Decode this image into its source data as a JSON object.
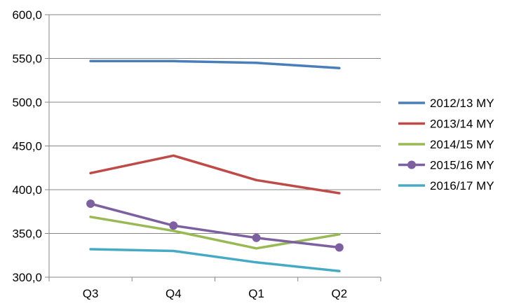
{
  "chart_data": {
    "type": "line",
    "title": "",
    "xlabel": "",
    "ylabel": "",
    "categories": [
      "Q3",
      "Q4",
      "Q1",
      "Q2"
    ],
    "ylim": [
      300,
      600
    ],
    "yticks": [
      300,
      350,
      400,
      450,
      500,
      550,
      600
    ],
    "ytick_labels": [
      "300,0",
      "350,0",
      "400,0",
      "450,0",
      "500,0",
      "550,0",
      "600,0"
    ],
    "grid": "horizontal",
    "legend_position": "right",
    "series": [
      {
        "name": "2012/13 MY",
        "color": "#4a7ebb",
        "marker": "none",
        "values": [
          547,
          547,
          545,
          539
        ]
      },
      {
        "name": "2013/14 MY",
        "color": "#be4b48",
        "marker": "none",
        "values": [
          419,
          439,
          411,
          396
        ]
      },
      {
        "name": "2014/15 MY",
        "color": "#98b954",
        "marker": "none",
        "values": [
          369,
          353,
          333,
          349
        ]
      },
      {
        "name": "2015/16 MY",
        "color": "#7d60a0",
        "marker": "circle",
        "values": [
          384,
          359,
          345,
          334
        ]
      },
      {
        "name": "2016/17 MY",
        "color": "#46aac5",
        "marker": "none",
        "values": [
          332,
          330,
          317,
          307
        ]
      }
    ]
  }
}
